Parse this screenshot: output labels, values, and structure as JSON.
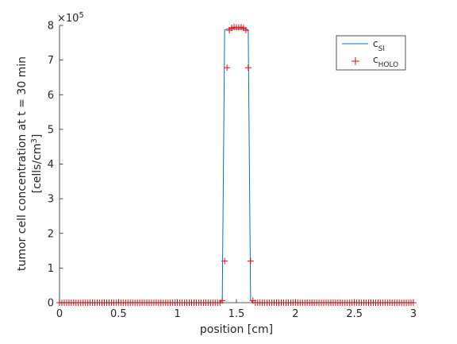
{
  "chart_data": {
    "type": "line",
    "title": "",
    "xlabel": "position [cm]",
    "ylabel_line1": "tumor cell concentration at t = 30 min",
    "ylabel_line2": "[cells/cm",
    "ylabel_line2_sup": "3",
    "ylabel_line2_end": "]",
    "xlim": [
      0,
      3
    ],
    "ylim": [
      0,
      800000
    ],
    "x_ticks": [
      0,
      0.5,
      1,
      1.5,
      2,
      2.5,
      3
    ],
    "x_tick_labels": [
      "0",
      "0.5",
      "1",
      "1.5",
      "2",
      "2.5",
      "3"
    ],
    "y_ticks": [
      0,
      100000,
      200000,
      300000,
      400000,
      500000,
      600000,
      700000,
      800000
    ],
    "y_tick_labels": [
      "0",
      "1",
      "2",
      "3",
      "4",
      "5",
      "6",
      "7",
      "8"
    ],
    "y_exponent_base": "×10",
    "y_exponent_power": "5",
    "grid": false,
    "legend_position": "top-right",
    "x_step": 0.02,
    "x_count": 151,
    "series": [
      {
        "name": "c",
        "name_sub": "SI",
        "style": "line",
        "color": "#0072BD",
        "points": [
          [
            0.0,
            0
          ],
          [
            1.36,
            0
          ],
          [
            1.38,
            8000
          ],
          [
            1.4,
            787000
          ],
          [
            1.42,
            790000
          ],
          [
            1.44,
            790000
          ],
          [
            1.46,
            790000
          ],
          [
            1.48,
            790000
          ],
          [
            1.5,
            790000
          ],
          [
            1.52,
            790000
          ],
          [
            1.54,
            790000
          ],
          [
            1.56,
            790000
          ],
          [
            1.58,
            790000
          ],
          [
            1.6,
            787000
          ],
          [
            1.62,
            8000
          ],
          [
            1.64,
            0
          ],
          [
            3.0,
            0
          ]
        ]
      },
      {
        "name": "c",
        "name_sub": "HOLO",
        "style": "marker",
        "marker": "+",
        "color": "#FF0000",
        "special_points": [
          [
            1.38,
            6000
          ],
          [
            1.4,
            120000
          ],
          [
            1.42,
            678000
          ],
          [
            1.44,
            786000
          ],
          [
            1.46,
            793000
          ],
          [
            1.48,
            795000
          ],
          [
            1.5,
            794000
          ],
          [
            1.52,
            794000
          ],
          [
            1.54,
            795000
          ],
          [
            1.56,
            793000
          ],
          [
            1.58,
            786000
          ],
          [
            1.6,
            678000
          ],
          [
            1.62,
            120000
          ],
          [
            1.64,
            6000
          ]
        ]
      }
    ]
  }
}
